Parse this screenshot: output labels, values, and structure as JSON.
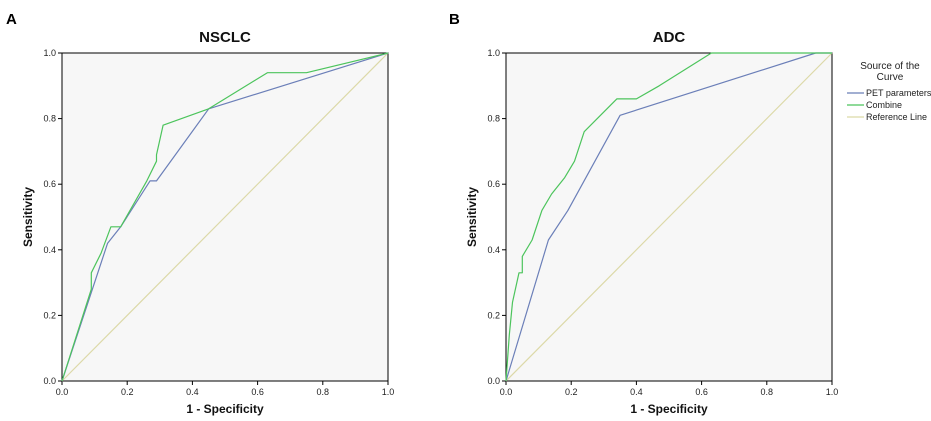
{
  "chart_data": [
    {
      "panel": "A",
      "type": "line",
      "title": "NSCLC",
      "xlabel": "1 - Specificity",
      "ylabel": "Sensitivity",
      "xlim": [
        0.0,
        1.0
      ],
      "ylim": [
        0.0,
        1.0
      ],
      "xticks": [
        "0.0",
        "0.2",
        "0.4",
        "0.6",
        "0.8",
        "1.0"
      ],
      "yticks": [
        "0.0",
        "0.2",
        "0.4",
        "0.6",
        "0.8",
        "1.0"
      ],
      "grid": false,
      "series": [
        {
          "name": "PET parameters",
          "color": "#6b7fb8",
          "x": [
            0.0,
            0.14,
            0.18,
            0.27,
            0.29,
            0.45,
            1.0
          ],
          "y": [
            0.0,
            0.42,
            0.47,
            0.61,
            0.61,
            0.83,
            1.0
          ]
        },
        {
          "name": "Combine",
          "color": "#4cc45c",
          "x": [
            0.0,
            0.09,
            0.09,
            0.12,
            0.15,
            0.18,
            0.26,
            0.29,
            0.29,
            0.31,
            0.45,
            0.63,
            0.75,
            1.0
          ],
          "y": [
            0.0,
            0.28,
            0.33,
            0.39,
            0.47,
            0.47,
            0.61,
            0.67,
            0.69,
            0.78,
            0.83,
            0.94,
            0.94,
            1.0
          ]
        },
        {
          "name": "Reference Line",
          "color": "#dcd9a8",
          "x": [
            0.0,
            1.0
          ],
          "y": [
            0.0,
            1.0
          ]
        }
      ]
    },
    {
      "panel": "B",
      "type": "line",
      "title": "ADC",
      "xlabel": "1 - Specificity",
      "ylabel": "Sensitivity",
      "xlim": [
        0.0,
        1.0
      ],
      "ylim": [
        0.0,
        1.0
      ],
      "xticks": [
        "0.0",
        "0.2",
        "0.4",
        "0.6",
        "0.8",
        "1.0"
      ],
      "yticks": [
        "0.0",
        "0.2",
        "0.4",
        "0.6",
        "0.8",
        "1.0"
      ],
      "grid": false,
      "series": [
        {
          "name": "PET parameters",
          "color": "#6b7fb8",
          "x": [
            0.0,
            0.13,
            0.19,
            0.35,
            0.95,
            1.0
          ],
          "y": [
            0.0,
            0.43,
            0.52,
            0.81,
            1.0,
            1.0
          ]
        },
        {
          "name": "Combine",
          "color": "#4cc45c",
          "x": [
            0.0,
            0.01,
            0.02,
            0.04,
            0.05,
            0.05,
            0.08,
            0.11,
            0.14,
            0.18,
            0.21,
            0.24,
            0.34,
            0.4,
            0.47,
            0.63,
            1.0
          ],
          "y": [
            0.0,
            0.14,
            0.24,
            0.33,
            0.33,
            0.38,
            0.43,
            0.52,
            0.57,
            0.62,
            0.67,
            0.76,
            0.86,
            0.86,
            0.9,
            1.0,
            1.0
          ]
        },
        {
          "name": "Reference Line",
          "color": "#dcd9a8",
          "x": [
            0.0,
            1.0
          ],
          "y": [
            0.0,
            1.0
          ]
        }
      ]
    }
  ],
  "legend": {
    "title_line1": "Source of the",
    "title_line2": "Curve",
    "placement": "right",
    "items": [
      {
        "label": "PET parameters",
        "color": "#6b7fb8"
      },
      {
        "label": "Combine",
        "color": "#4cc45c"
      },
      {
        "label": "Reference Line",
        "color": "#dcd9a8"
      }
    ]
  }
}
